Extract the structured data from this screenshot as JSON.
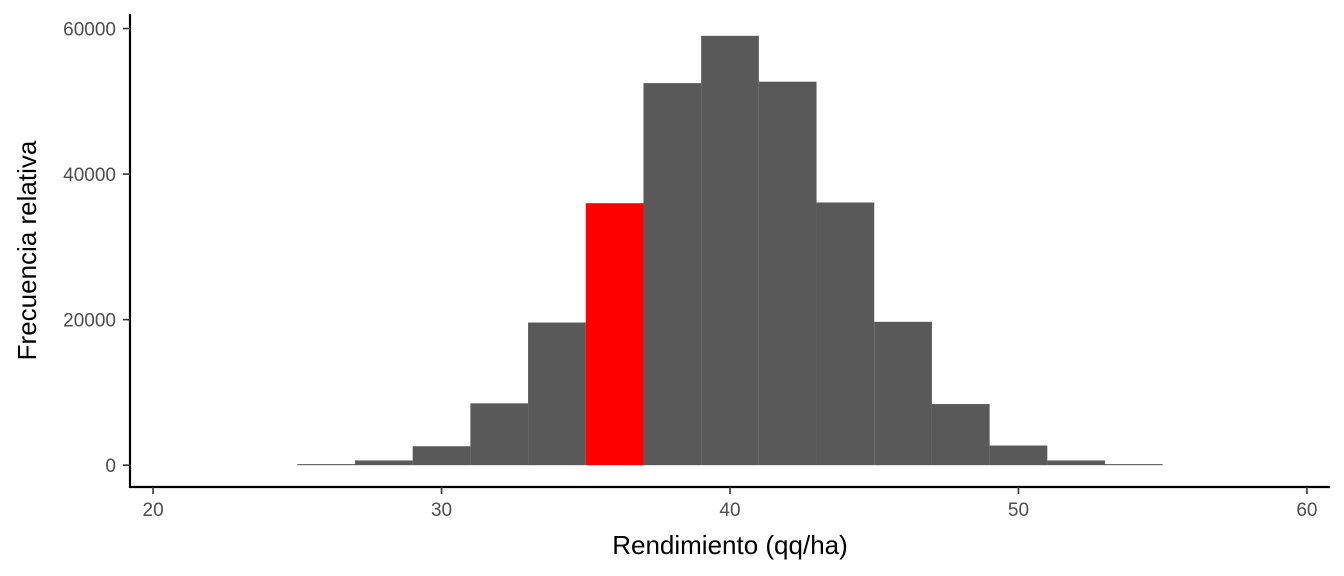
{
  "chart_data": {
    "type": "bar",
    "title": "",
    "xlabel": "Rendimiento (qq/ha)",
    "ylabel": "Frecuencia relativa",
    "xlim": [
      19.2,
      60.8
    ],
    "ylim": [
      -3000,
      62000
    ],
    "x_ticks": [
      20,
      30,
      40,
      50,
      60
    ],
    "y_ticks": [
      0,
      20000,
      40000,
      60000
    ],
    "x_tick_labels": [
      "20",
      "30",
      "40",
      "50",
      "60"
    ],
    "y_tick_labels": [
      "0",
      "20000",
      "40000",
      "60000"
    ],
    "grid": false,
    "bin_width": 2,
    "bar_color": "#595959",
    "highlight_color": "#ff0000",
    "bins": [
      {
        "x0": 25,
        "x1": 27,
        "value": 150,
        "highlight": false
      },
      {
        "x0": 27,
        "x1": 29,
        "value": 650,
        "highlight": false
      },
      {
        "x0": 29,
        "x1": 31,
        "value": 2600,
        "highlight": false
      },
      {
        "x0": 31,
        "x1": 33,
        "value": 8500,
        "highlight": false
      },
      {
        "x0": 33,
        "x1": 35,
        "value": 19600,
        "highlight": false
      },
      {
        "x0": 35,
        "x1": 37,
        "value": 36000,
        "highlight": true
      },
      {
        "x0": 37,
        "x1": 39,
        "value": 52500,
        "highlight": false
      },
      {
        "x0": 39,
        "x1": 41,
        "value": 59000,
        "highlight": false
      },
      {
        "x0": 41,
        "x1": 43,
        "value": 52700,
        "highlight": false
      },
      {
        "x0": 43,
        "x1": 45,
        "value": 36100,
        "highlight": false
      },
      {
        "x0": 45,
        "x1": 47,
        "value": 19700,
        "highlight": false
      },
      {
        "x0": 47,
        "x1": 49,
        "value": 8400,
        "highlight": false
      },
      {
        "x0": 49,
        "x1": 51,
        "value": 2700,
        "highlight": false
      },
      {
        "x0": 51,
        "x1": 53,
        "value": 650,
        "highlight": false
      },
      {
        "x0": 53,
        "x1": 55,
        "value": 150,
        "highlight": false
      }
    ]
  }
}
